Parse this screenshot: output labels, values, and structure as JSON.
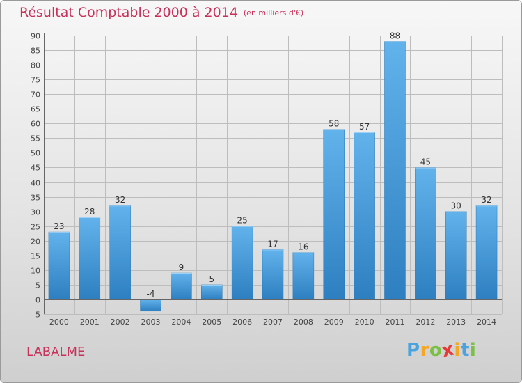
{
  "title": "Résultat Comptable 2000 à 2014",
  "subtitle": "(en milliers d'€)",
  "commune": "LABALME",
  "logo": {
    "letters": [
      "P",
      "r",
      "o",
      "x",
      "i",
      "t",
      "i"
    ],
    "colors": [
      "#4aa3df",
      "#f5a623",
      "#7ac143",
      "#e53935",
      "#f5a623",
      "#4aa3df",
      "#7ac143"
    ]
  },
  "colors": {
    "bar": "#3d94d6",
    "bar_light": "#6ab8ee",
    "grid": "#bdbdbd",
    "title": "#c8325a"
  },
  "chart_data": {
    "type": "bar",
    "title": "Résultat Comptable 2000 à 2014",
    "xlabel": "",
    "ylabel": "",
    "categories": [
      "2000",
      "2001",
      "2002",
      "2003",
      "2004",
      "2005",
      "2006",
      "2007",
      "2008",
      "2009",
      "2010",
      "2011",
      "2012",
      "2013",
      "2014"
    ],
    "values": [
      23,
      28,
      32,
      -4,
      9,
      5,
      25,
      17,
      16,
      58,
      57,
      88,
      45,
      30,
      32
    ],
    "labels": [
      "23",
      "28",
      "32",
      "-4",
      "9",
      "5",
      "25",
      "17",
      "16",
      "58",
      "57",
      "88",
      "45",
      "30",
      "32"
    ],
    "ylim": [
      -5,
      90
    ],
    "yticks": [
      -5,
      0,
      5,
      10,
      15,
      20,
      25,
      30,
      35,
      40,
      45,
      50,
      55,
      60,
      65,
      70,
      75,
      80,
      85,
      90
    ],
    "grid": true
  }
}
